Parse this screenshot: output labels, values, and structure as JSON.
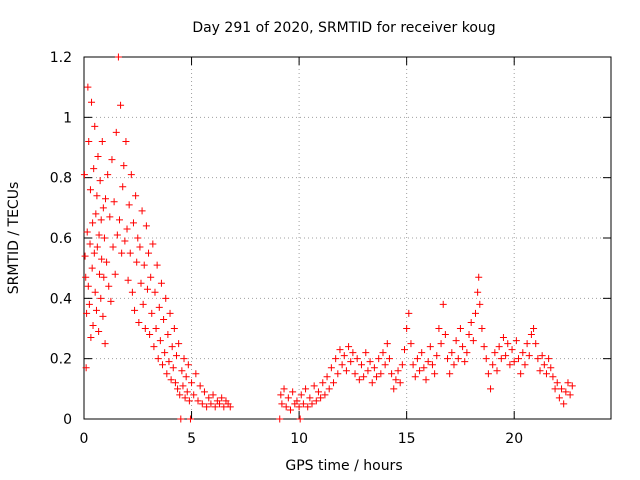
{
  "chart_data": {
    "type": "scatter",
    "title": "Day 291 of 2020, SRMTID for receiver koug",
    "xlabel": "GPS time / hours",
    "ylabel": "SRMTID / TECUs",
    "xlim": [
      0,
      24.5
    ],
    "ylim": [
      0,
      1.2
    ],
    "xticks": [
      0,
      5,
      10,
      15,
      20
    ],
    "xtick_labels": [
      "0",
      "5",
      "10",
      "15",
      "20"
    ],
    "yticks": [
      0,
      0.2,
      0.4,
      0.6,
      0.8,
      1.0,
      1.2
    ],
    "ytick_labels": [
      "0",
      "0.2",
      "0.4",
      "0.6",
      "0.8",
      "1",
      "1.2"
    ],
    "grid": true,
    "marker": "+",
    "color": "#ff0000",
    "series": [
      {
        "name": "SRMTID",
        "points": [
          [
            0.02,
            0.81
          ],
          [
            0.05,
            0.54
          ],
          [
            0.08,
            0.47
          ],
          [
            0.1,
            0.17
          ],
          [
            0.12,
            0.35
          ],
          [
            0.15,
            0.62
          ],
          [
            0.18,
            1.1
          ],
          [
            0.2,
            0.44
          ],
          [
            0.22,
            0.92
          ],
          [
            0.25,
            0.38
          ],
          [
            0.28,
            0.58
          ],
          [
            0.3,
            0.76
          ],
          [
            0.32,
            0.27
          ],
          [
            0.35,
            1.05
          ],
          [
            0.38,
            0.5
          ],
          [
            0.4,
            0.65
          ],
          [
            0.42,
            0.31
          ],
          [
            0.45,
            0.83
          ],
          [
            0.48,
            0.55
          ],
          [
            0.5,
            0.97
          ],
          [
            0.52,
            0.42
          ],
          [
            0.55,
            0.68
          ],
          [
            0.58,
            0.36
          ],
          [
            0.6,
            0.74
          ],
          [
            0.62,
            0.57
          ],
          [
            0.65,
            0.87
          ],
          [
            0.68,
            0.29
          ],
          [
            0.7,
            0.61
          ],
          [
            0.72,
            0.48
          ],
          [
            0.75,
            0.79
          ],
          [
            0.78,
            0.4
          ],
          [
            0.8,
            0.66
          ],
          [
            0.82,
            0.53
          ],
          [
            0.85,
            0.92
          ],
          [
            0.88,
            0.34
          ],
          [
            0.9,
            0.7
          ],
          [
            0.92,
            0.47
          ],
          [
            0.95,
            0.6
          ],
          [
            0.98,
            0.25
          ],
          [
            1.0,
            0.73
          ],
          [
            1.05,
            0.52
          ],
          [
            1.1,
            0.81
          ],
          [
            1.15,
            0.44
          ],
          [
            1.2,
            0.67
          ],
          [
            1.25,
            0.39
          ],
          [
            1.3,
            0.86
          ],
          [
            1.35,
            0.57
          ],
          [
            1.4,
            0.72
          ],
          [
            1.45,
            0.48
          ],
          [
            1.5,
            0.95
          ],
          [
            1.55,
            0.61
          ],
          [
            1.6,
            1.2
          ],
          [
            1.65,
            0.66
          ],
          [
            1.7,
            1.04
          ],
          [
            1.75,
            0.55
          ],
          [
            1.8,
            0.77
          ],
          [
            1.85,
            0.84
          ],
          [
            1.9,
            0.59
          ],
          [
            1.95,
            0.92
          ],
          [
            2.0,
            0.63
          ],
          [
            2.05,
            0.46
          ],
          [
            2.1,
            0.71
          ],
          [
            2.15,
            0.55
          ],
          [
            2.2,
            0.81
          ],
          [
            2.25,
            0.42
          ],
          [
            2.3,
            0.65
          ],
          [
            2.35,
            0.36
          ],
          [
            2.4,
            0.74
          ],
          [
            2.45,
            0.52
          ],
          [
            2.5,
            0.6
          ],
          [
            2.55,
            0.32
          ],
          [
            2.6,
            0.57
          ],
          [
            2.65,
            0.45
          ],
          [
            2.7,
            0.69
          ],
          [
            2.75,
            0.38
          ],
          [
            2.8,
            0.51
          ],
          [
            2.85,
            0.3
          ],
          [
            2.9,
            0.64
          ],
          [
            2.95,
            0.43
          ],
          [
            3.0,
            0.55
          ],
          [
            3.05,
            0.28
          ],
          [
            3.1,
            0.47
          ],
          [
            3.15,
            0.35
          ],
          [
            3.2,
            0.58
          ],
          [
            3.25,
            0.24
          ],
          [
            3.3,
            0.42
          ],
          [
            3.35,
            0.3
          ],
          [
            3.4,
            0.51
          ],
          [
            3.45,
            0.2
          ],
          [
            3.5,
            0.37
          ],
          [
            3.55,
            0.26
          ],
          [
            3.6,
            0.45
          ],
          [
            3.65,
            0.18
          ],
          [
            3.7,
            0.33
          ],
          [
            3.75,
            0.22
          ],
          [
            3.8,
            0.4
          ],
          [
            3.85,
            0.15
          ],
          [
            3.9,
            0.28
          ],
          [
            3.95,
            0.19
          ],
          [
            4.0,
            0.35
          ],
          [
            4.05,
            0.13
          ],
          [
            4.1,
            0.24
          ],
          [
            4.15,
            0.17
          ],
          [
            4.2,
            0.3
          ],
          [
            4.25,
            0.12
          ],
          [
            4.3,
            0.21
          ],
          [
            4.35,
            0.1
          ],
          [
            4.4,
            0.25
          ],
          [
            4.45,
            0.08
          ],
          [
            4.5,
            0.0
          ],
          [
            4.55,
            0.16
          ],
          [
            4.6,
            0.11
          ],
          [
            4.65,
            0.2
          ],
          [
            4.7,
            0.07
          ],
          [
            4.75,
            0.14
          ],
          [
            4.8,
            0.09
          ],
          [
            4.85,
            0.18
          ],
          [
            4.9,
            0.06
          ],
          [
            4.95,
            0.0
          ],
          [
            5.0,
            0.12
          ],
          [
            5.1,
            0.08
          ],
          [
            5.2,
            0.15
          ],
          [
            5.3,
            0.06
          ],
          [
            5.4,
            0.11
          ],
          [
            5.5,
            0.05
          ],
          [
            5.6,
            0.09
          ],
          [
            5.7,
            0.04
          ],
          [
            5.8,
            0.07
          ],
          [
            5.9,
            0.05
          ],
          [
            6.0,
            0.08
          ],
          [
            6.1,
            0.04
          ],
          [
            6.2,
            0.06
          ],
          [
            6.3,
            0.05
          ],
          [
            6.4,
            0.07
          ],
          [
            6.5,
            0.04
          ],
          [
            6.6,
            0.06
          ],
          [
            6.7,
            0.05
          ],
          [
            6.8,
            0.04
          ],
          [
            9.1,
            0.0
          ],
          [
            9.15,
            0.08
          ],
          [
            9.2,
            0.05
          ],
          [
            9.3,
            0.1
          ],
          [
            9.4,
            0.04
          ],
          [
            9.5,
            0.07
          ],
          [
            9.6,
            0.03
          ],
          [
            9.7,
            0.09
          ],
          [
            9.8,
            0.05
          ],
          [
            9.9,
            0.06
          ],
          [
            10.0,
            0.04
          ],
          [
            10.05,
            0.0
          ],
          [
            10.1,
            0.08
          ],
          [
            10.2,
            0.05
          ],
          [
            10.3,
            0.1
          ],
          [
            10.4,
            0.04
          ],
          [
            10.5,
            0.07
          ],
          [
            10.6,
            0.05
          ],
          [
            10.7,
            0.11
          ],
          [
            10.8,
            0.06
          ],
          [
            10.9,
            0.09
          ],
          [
            11.0,
            0.07
          ],
          [
            11.1,
            0.12
          ],
          [
            11.2,
            0.08
          ],
          [
            11.3,
            0.14
          ],
          [
            11.4,
            0.1
          ],
          [
            11.5,
            0.17
          ],
          [
            11.6,
            0.12
          ],
          [
            11.7,
            0.2
          ],
          [
            11.8,
            0.15
          ],
          [
            11.9,
            0.23
          ],
          [
            12.0,
            0.18
          ],
          [
            12.1,
            0.21
          ],
          [
            12.2,
            0.16
          ],
          [
            12.3,
            0.24
          ],
          [
            12.4,
            0.19
          ],
          [
            12.5,
            0.22
          ],
          [
            12.6,
            0.15
          ],
          [
            12.7,
            0.2
          ],
          [
            12.8,
            0.13
          ],
          [
            12.9,
            0.18
          ],
          [
            13.0,
            0.14
          ],
          [
            13.1,
            0.22
          ],
          [
            13.2,
            0.16
          ],
          [
            13.3,
            0.19
          ],
          [
            13.4,
            0.12
          ],
          [
            13.5,
            0.17
          ],
          [
            13.6,
            0.14
          ],
          [
            13.7,
            0.2
          ],
          [
            13.8,
            0.15
          ],
          [
            13.9,
            0.22
          ],
          [
            14.0,
            0.18
          ],
          [
            14.1,
            0.25
          ],
          [
            14.2,
            0.2
          ],
          [
            14.3,
            0.15
          ],
          [
            14.4,
            0.1
          ],
          [
            14.5,
            0.13
          ],
          [
            14.6,
            0.16
          ],
          [
            14.7,
            0.12
          ],
          [
            14.8,
            0.18
          ],
          [
            14.9,
            0.23
          ],
          [
            15.0,
            0.3
          ],
          [
            15.1,
            0.35
          ],
          [
            15.2,
            0.25
          ],
          [
            15.3,
            0.18
          ],
          [
            15.4,
            0.14
          ],
          [
            15.5,
            0.2
          ],
          [
            15.6,
            0.16
          ],
          [
            15.7,
            0.22
          ],
          [
            15.8,
            0.17
          ],
          [
            15.9,
            0.13
          ],
          [
            16.0,
            0.19
          ],
          [
            16.1,
            0.24
          ],
          [
            16.2,
            0.18
          ],
          [
            16.3,
            0.15
          ],
          [
            16.4,
            0.21
          ],
          [
            16.5,
            0.3
          ],
          [
            16.6,
            0.25
          ],
          [
            16.7,
            0.38
          ],
          [
            16.8,
            0.28
          ],
          [
            16.9,
            0.2
          ],
          [
            17.0,
            0.15
          ],
          [
            17.1,
            0.22
          ],
          [
            17.2,
            0.18
          ],
          [
            17.3,
            0.26
          ],
          [
            17.4,
            0.2
          ],
          [
            17.5,
            0.3
          ],
          [
            17.6,
            0.24
          ],
          [
            17.7,
            0.19
          ],
          [
            17.8,
            0.22
          ],
          [
            17.9,
            0.28
          ],
          [
            18.0,
            0.32
          ],
          [
            18.1,
            0.26
          ],
          [
            18.2,
            0.35
          ],
          [
            18.3,
            0.42
          ],
          [
            18.35,
            0.47
          ],
          [
            18.4,
            0.38
          ],
          [
            18.5,
            0.3
          ],
          [
            18.6,
            0.24
          ],
          [
            18.7,
            0.2
          ],
          [
            18.8,
            0.15
          ],
          [
            18.9,
            0.1
          ],
          [
            19.0,
            0.18
          ],
          [
            19.1,
            0.22
          ],
          [
            19.2,
            0.16
          ],
          [
            19.3,
            0.24
          ],
          [
            19.4,
            0.2
          ],
          [
            19.5,
            0.27
          ],
          [
            19.6,
            0.21
          ],
          [
            19.7,
            0.25
          ],
          [
            19.8,
            0.18
          ],
          [
            19.9,
            0.23
          ],
          [
            20.0,
            0.19
          ],
          [
            20.1,
            0.26
          ],
          [
            20.2,
            0.2
          ],
          [
            20.3,
            0.15
          ],
          [
            20.4,
            0.22
          ],
          [
            20.5,
            0.18
          ],
          [
            20.6,
            0.25
          ],
          [
            20.7,
            0.21
          ],
          [
            20.8,
            0.28
          ],
          [
            20.9,
            0.3
          ],
          [
            21.0,
            0.25
          ],
          [
            21.1,
            0.2
          ],
          [
            21.2,
            0.16
          ],
          [
            21.3,
            0.21
          ],
          [
            21.4,
            0.18
          ],
          [
            21.5,
            0.15
          ],
          [
            21.6,
            0.2
          ],
          [
            21.7,
            0.17
          ],
          [
            21.8,
            0.14
          ],
          [
            21.9,
            0.1
          ],
          [
            22.0,
            0.12
          ],
          [
            22.1,
            0.07
          ],
          [
            22.2,
            0.1
          ],
          [
            22.3,
            0.05
          ],
          [
            22.4,
            0.09
          ],
          [
            22.5,
            0.12
          ],
          [
            22.6,
            0.08
          ],
          [
            22.7,
            0.11
          ]
        ]
      }
    ]
  }
}
